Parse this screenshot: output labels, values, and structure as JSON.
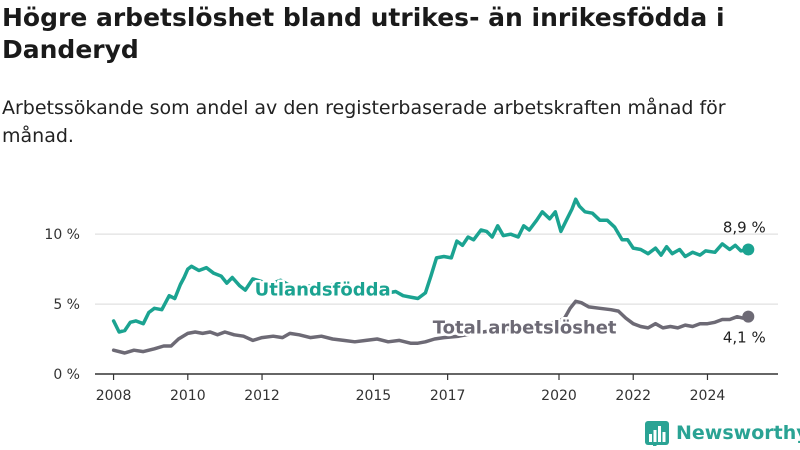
{
  "header": {
    "title": "Högre arbetslöshet bland utrikes- än inrikesfödda i Danderyd",
    "subtitle": "Arbetssökande som andel av den registerbaserade arbetskraften månad för månad."
  },
  "brand": {
    "name": "Newsworthy",
    "logo_icon": "bar-chart-logo-icon",
    "color": "#2aa394"
  },
  "chart_data": {
    "type": "line",
    "title": "Högre arbetslöshet bland utrikes- än inrikesfödda i Danderyd",
    "subtitle": "Arbetssökande som andel av den registerbaserade arbetskraften månad för månad.",
    "x_unit": "year",
    "xlim": [
      2007.5,
      2025.9
    ],
    "ylim": [
      0,
      12.8
    ],
    "y_ticks": [
      {
        "value": 0,
        "label": "0 %"
      },
      {
        "value": 5,
        "label": "5 %"
      },
      {
        "value": 10,
        "label": "10 %"
      }
    ],
    "x_ticks": [
      {
        "value": 2008,
        "label": "2008"
      },
      {
        "value": 2010,
        "label": "2010"
      },
      {
        "value": 2012,
        "label": "2012"
      },
      {
        "value": 2015,
        "label": "2015"
      },
      {
        "value": 2017,
        "label": "2017"
      },
      {
        "value": 2020,
        "label": "2020"
      },
      {
        "value": 2022,
        "label": "2022"
      },
      {
        "value": 2024,
        "label": "2024"
      }
    ],
    "grid": "horizontal",
    "series": [
      {
        "name": "Utlandsfödda",
        "color": "#1ba391",
        "end_label": "8,9 %",
        "points": [
          [
            2008.0,
            3.8
          ],
          [
            2008.15,
            3.0
          ],
          [
            2008.3,
            3.1
          ],
          [
            2008.45,
            3.7
          ],
          [
            2008.6,
            3.8
          ],
          [
            2008.8,
            3.6
          ],
          [
            2008.95,
            4.4
          ],
          [
            2009.1,
            4.7
          ],
          [
            2009.3,
            4.6
          ],
          [
            2009.5,
            5.6
          ],
          [
            2009.65,
            5.4
          ],
          [
            2009.8,
            6.4
          ],
          [
            2009.9,
            6.9
          ],
          [
            2010.0,
            7.5
          ],
          [
            2010.1,
            7.7
          ],
          [
            2010.3,
            7.4
          ],
          [
            2010.5,
            7.6
          ],
          [
            2010.7,
            7.2
          ],
          [
            2010.9,
            7.0
          ],
          [
            2011.05,
            6.5
          ],
          [
            2011.2,
            6.9
          ],
          [
            2011.4,
            6.3
          ],
          [
            2011.55,
            6.0
          ],
          [
            2011.75,
            6.8
          ],
          [
            2012.0,
            6.6
          ],
          [
            2012.2,
            6.4
          ],
          [
            2012.5,
            6.7
          ],
          [
            2012.7,
            6.4
          ],
          [
            2013.0,
            6.2
          ],
          [
            2013.3,
            6.3
          ],
          [
            2013.6,
            6.1
          ],
          [
            2013.9,
            6.4
          ],
          [
            2014.1,
            6.0
          ],
          [
            2014.3,
            5.8
          ],
          [
            2014.6,
            6.2
          ],
          [
            2014.9,
            5.9
          ],
          [
            2015.2,
            6.0
          ],
          [
            2015.4,
            5.8
          ],
          [
            2015.6,
            5.9
          ],
          [
            2015.8,
            5.6
          ],
          [
            2016.0,
            5.5
          ],
          [
            2016.2,
            5.4
          ],
          [
            2016.4,
            5.8
          ],
          [
            2016.55,
            7.0
          ],
          [
            2016.7,
            8.3
          ],
          [
            2016.9,
            8.4
          ],
          [
            2017.1,
            8.3
          ],
          [
            2017.25,
            9.5
          ],
          [
            2017.4,
            9.2
          ],
          [
            2017.55,
            9.8
          ],
          [
            2017.7,
            9.6
          ],
          [
            2017.9,
            10.3
          ],
          [
            2018.05,
            10.2
          ],
          [
            2018.2,
            9.8
          ],
          [
            2018.35,
            10.6
          ],
          [
            2018.5,
            9.9
          ],
          [
            2018.7,
            10.0
          ],
          [
            2018.9,
            9.8
          ],
          [
            2019.05,
            10.6
          ],
          [
            2019.2,
            10.3
          ],
          [
            2019.4,
            11.0
          ],
          [
            2019.55,
            11.6
          ],
          [
            2019.75,
            11.1
          ],
          [
            2019.9,
            11.6
          ],
          [
            2020.05,
            10.2
          ],
          [
            2020.2,
            11.0
          ],
          [
            2020.35,
            11.8
          ],
          [
            2020.45,
            12.5
          ],
          [
            2020.55,
            12.0
          ],
          [
            2020.7,
            11.6
          ],
          [
            2020.9,
            11.5
          ],
          [
            2021.1,
            11.0
          ],
          [
            2021.3,
            11.0
          ],
          [
            2021.5,
            10.5
          ],
          [
            2021.7,
            9.6
          ],
          [
            2021.85,
            9.6
          ],
          [
            2022.0,
            9.0
          ],
          [
            2022.2,
            8.9
          ],
          [
            2022.4,
            8.6
          ],
          [
            2022.6,
            9.0
          ],
          [
            2022.75,
            8.5
          ],
          [
            2022.9,
            9.1
          ],
          [
            2023.05,
            8.6
          ],
          [
            2023.25,
            8.9
          ],
          [
            2023.4,
            8.4
          ],
          [
            2023.6,
            8.7
          ],
          [
            2023.8,
            8.5
          ],
          [
            2023.95,
            8.8
          ],
          [
            2024.2,
            8.7
          ],
          [
            2024.4,
            9.3
          ],
          [
            2024.6,
            8.9
          ],
          [
            2024.75,
            9.2
          ],
          [
            2024.9,
            8.8
          ],
          [
            2025.1,
            8.9
          ]
        ]
      },
      {
        "name": "Total arbetslöshet",
        "color": "#6d6a75",
        "end_label": "4,1 %",
        "points": [
          [
            2008.0,
            1.7
          ],
          [
            2008.3,
            1.5
          ],
          [
            2008.55,
            1.7
          ],
          [
            2008.8,
            1.6
          ],
          [
            2009.1,
            1.8
          ],
          [
            2009.35,
            2.0
          ],
          [
            2009.55,
            2.0
          ],
          [
            2009.75,
            2.5
          ],
          [
            2010.0,
            2.9
          ],
          [
            2010.2,
            3.0
          ],
          [
            2010.4,
            2.9
          ],
          [
            2010.6,
            3.0
          ],
          [
            2010.8,
            2.8
          ],
          [
            2011.0,
            3.0
          ],
          [
            2011.25,
            2.8
          ],
          [
            2011.5,
            2.7
          ],
          [
            2011.75,
            2.4
          ],
          [
            2012.0,
            2.6
          ],
          [
            2012.3,
            2.7
          ],
          [
            2012.55,
            2.6
          ],
          [
            2012.75,
            2.9
          ],
          [
            2013.0,
            2.8
          ],
          [
            2013.3,
            2.6
          ],
          [
            2013.6,
            2.7
          ],
          [
            2013.9,
            2.5
          ],
          [
            2014.2,
            2.4
          ],
          [
            2014.5,
            2.3
          ],
          [
            2014.8,
            2.4
          ],
          [
            2015.1,
            2.5
          ],
          [
            2015.4,
            2.3
          ],
          [
            2015.7,
            2.4
          ],
          [
            2016.0,
            2.2
          ],
          [
            2016.2,
            2.2
          ],
          [
            2016.4,
            2.3
          ],
          [
            2016.65,
            2.5
          ],
          [
            2016.9,
            2.6
          ],
          [
            2017.3,
            2.7
          ],
          [
            2017.7,
            2.9
          ],
          [
            2018.2,
            3.1
          ],
          [
            2018.7,
            3.2
          ],
          [
            2019.2,
            3.3
          ],
          [
            2019.6,
            3.5
          ],
          [
            2020.0,
            3.8
          ],
          [
            2020.15,
            4.0
          ],
          [
            2020.3,
            4.7
          ],
          [
            2020.45,
            5.2
          ],
          [
            2020.6,
            5.1
          ],
          [
            2020.8,
            4.8
          ],
          [
            2021.1,
            4.7
          ],
          [
            2021.4,
            4.6
          ],
          [
            2021.6,
            4.5
          ],
          [
            2021.8,
            4.0
          ],
          [
            2022.0,
            3.6
          ],
          [
            2022.2,
            3.4
          ],
          [
            2022.4,
            3.3
          ],
          [
            2022.6,
            3.6
          ],
          [
            2022.8,
            3.3
          ],
          [
            2023.0,
            3.4
          ],
          [
            2023.2,
            3.3
          ],
          [
            2023.4,
            3.5
          ],
          [
            2023.6,
            3.4
          ],
          [
            2023.8,
            3.6
          ],
          [
            2024.0,
            3.6
          ],
          [
            2024.2,
            3.7
          ],
          [
            2024.4,
            3.9
          ],
          [
            2024.6,
            3.9
          ],
          [
            2024.8,
            4.1
          ],
          [
            2024.95,
            4.0
          ],
          [
            2025.1,
            4.1
          ]
        ]
      }
    ]
  }
}
